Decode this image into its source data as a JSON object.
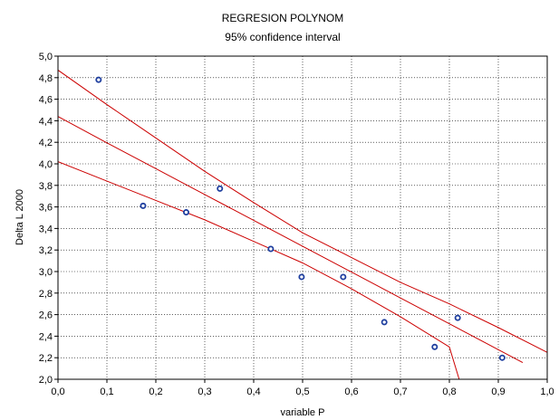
{
  "chart_data": {
    "type": "scatter",
    "title": "REGRESION POLYNOM",
    "subtitle": "95% confidence interval",
    "xlabel": "variable P",
    "ylabel": "Delta L 2000",
    "xlim": [
      0.0,
      1.0
    ],
    "ylim": [
      2.0,
      5.0
    ],
    "x_ticks": [
      0.0,
      0.1,
      0.2,
      0.3,
      0.4,
      0.5,
      0.6,
      0.7,
      0.8,
      0.9,
      1.0
    ],
    "x_tick_labels": [
      "0,0",
      "0,1",
      "0,2",
      "0,3",
      "0,4",
      "0,5",
      "0,6",
      "0,7",
      "0,8",
      "0,9",
      "1,0"
    ],
    "y_ticks": [
      2.0,
      2.2,
      2.4,
      2.6,
      2.8,
      3.0,
      3.2,
      3.4,
      3.6,
      3.8,
      4.0,
      4.2,
      4.4,
      4.6,
      4.8,
      5.0
    ],
    "y_tick_labels": [
      "2,0",
      "2,2",
      "2,4",
      "2,6",
      "2,8",
      "3,0",
      "3,2",
      "3,4",
      "3,6",
      "3,8",
      "4,0",
      "4,2",
      "4,4",
      "4,6",
      "4,8",
      "5,0"
    ],
    "grid": true,
    "points": {
      "x": [
        0.083,
        0.174,
        0.262,
        0.331,
        0.435,
        0.498,
        0.583,
        0.667,
        0.77,
        0.817,
        0.908
      ],
      "y": [
        4.78,
        3.61,
        3.55,
        3.77,
        3.21,
        2.95,
        2.95,
        2.53,
        2.3,
        2.57,
        2.2
      ],
      "color": "#1f3f9f"
    },
    "regression_line": {
      "x": [
        0.0,
        0.1,
        0.2,
        0.3,
        0.4,
        0.5,
        0.6,
        0.7,
        0.8,
        0.9,
        0.95
      ],
      "y": [
        4.44,
        4.195,
        3.955,
        3.715,
        3.475,
        3.235,
        2.995,
        2.755,
        2.515,
        2.275,
        2.155
      ],
      "color": "#cc0000"
    },
    "confidence_upper": {
      "x": [
        0.0,
        0.1,
        0.2,
        0.3,
        0.4,
        0.5,
        0.6,
        0.7,
        0.8,
        0.9,
        1.0
      ],
      "y": [
        4.87,
        4.55,
        4.24,
        3.93,
        3.64,
        3.36,
        3.13,
        2.9,
        2.7,
        2.48,
        2.25
      ],
      "color": "#cc0000"
    },
    "confidence_lower": {
      "x": [
        0.0,
        0.1,
        0.2,
        0.3,
        0.4,
        0.5,
        0.6,
        0.7,
        0.8,
        0.82
      ],
      "y": [
        4.02,
        3.84,
        3.66,
        3.48,
        3.28,
        3.08,
        2.84,
        2.58,
        2.3,
        2.0
      ],
      "color": "#cc0000"
    }
  }
}
